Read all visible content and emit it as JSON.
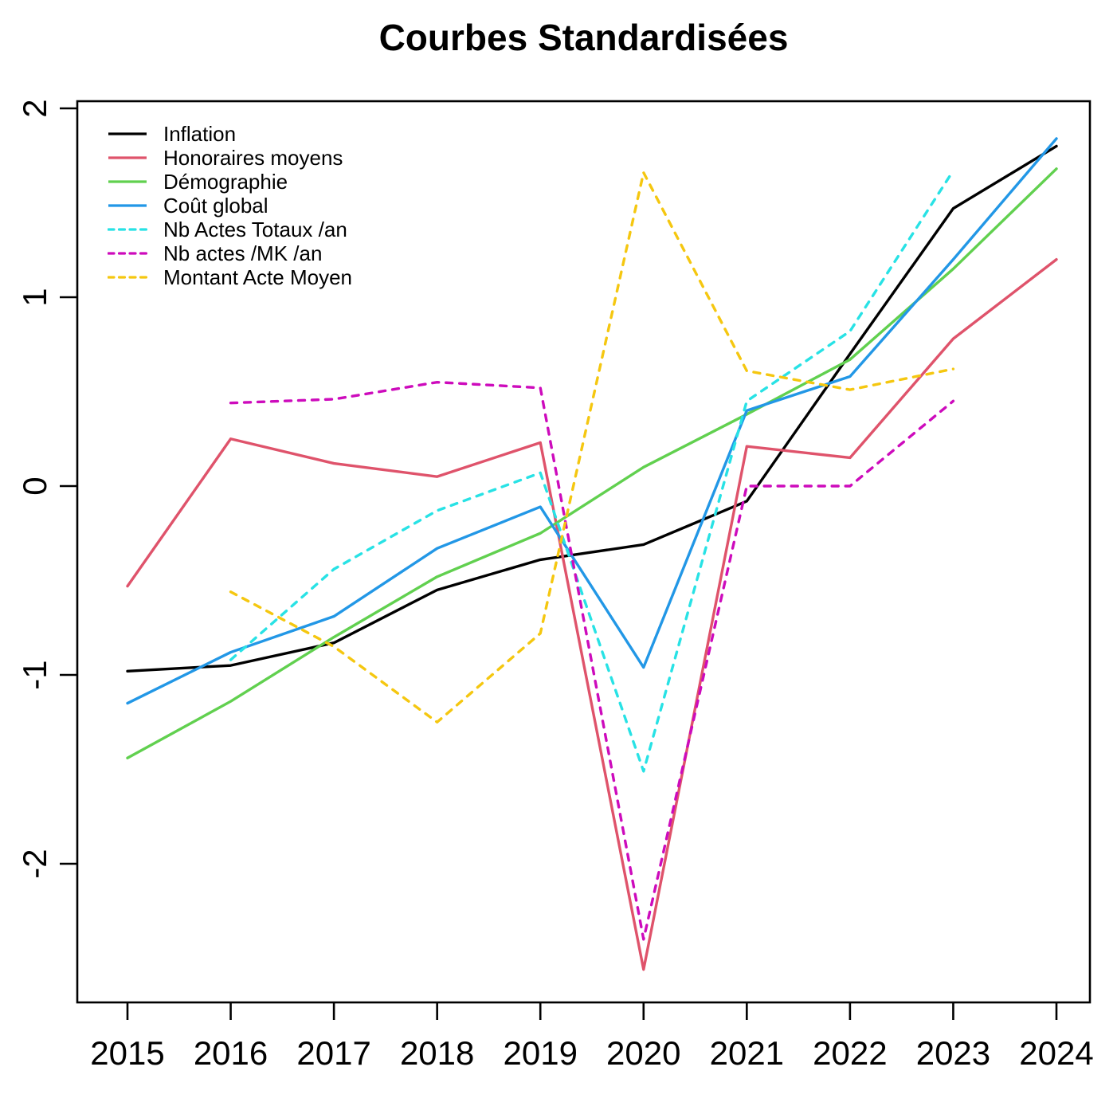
{
  "chart_data": {
    "type": "line",
    "title": "Courbes Standardisées",
    "xlabel": "",
    "ylabel": "",
    "x": [
      2015,
      2016,
      2017,
      2018,
      2019,
      2020,
      2021,
      2022,
      2023,
      2024
    ],
    "x_tick_labels": [
      "2015",
      "2016",
      "2017",
      "2018",
      "2019",
      "2020",
      "2021",
      "2022",
      "2023",
      "2024"
    ],
    "y_ticks": [
      2,
      1,
      0,
      -1,
      -2
    ],
    "y_tick_labels": [
      "2",
      "1",
      "0",
      "-1",
      "-2"
    ],
    "xlim": [
      2014.5,
      2024.33
    ],
    "ylim": [
      -2.73,
      2.04
    ],
    "grid": false,
    "legend_position": "top-left",
    "series": [
      {
        "name": "Inflation",
        "color": "#000000",
        "line_style": "solid",
        "values": [
          -0.98,
          -0.95,
          -0.83,
          -0.55,
          -0.39,
          -0.31,
          -0.08,
          0.7,
          1.47,
          1.8
        ]
      },
      {
        "name": "Honoraires moyens",
        "color": "#DF536B",
        "line_style": "solid",
        "values": [
          -0.53,
          0.25,
          0.12,
          0.05,
          0.23,
          -2.56,
          0.21,
          0.15,
          0.78,
          1.2
        ]
      },
      {
        "name": "Démographie",
        "color": "#61D04F",
        "line_style": "solid",
        "values": [
          -1.44,
          -1.14,
          -0.8,
          -0.48,
          -0.25,
          0.1,
          0.38,
          0.67,
          1.15,
          1.68
        ]
      },
      {
        "name": "Coût global",
        "color": "#2297E6",
        "line_style": "solid",
        "values": [
          -1.15,
          -0.88,
          -0.69,
          -0.33,
          -0.11,
          -0.96,
          0.4,
          0.58,
          1.2,
          1.84
        ]
      },
      {
        "name": "Nb Actes Totaux /an",
        "color": "#28E2E5",
        "line_style": "dashed",
        "values": [
          null,
          -0.92,
          -0.44,
          -0.13,
          0.07,
          -1.51,
          0.45,
          0.82,
          1.67,
          null
        ]
      },
      {
        "name": "Nb actes /MK /an",
        "color": "#CD0BBC",
        "line_style": "dashed",
        "values": [
          null,
          0.44,
          0.46,
          0.55,
          0.52,
          -2.4,
          0.0,
          0.0,
          0.45,
          null
        ]
      },
      {
        "name": "Montant Acte Moyen",
        "color": "#F5C710",
        "line_style": "dashed",
        "values": [
          null,
          -0.56,
          -0.85,
          -1.25,
          -0.78,
          1.66,
          0.61,
          0.51,
          0.62,
          null
        ]
      }
    ]
  }
}
